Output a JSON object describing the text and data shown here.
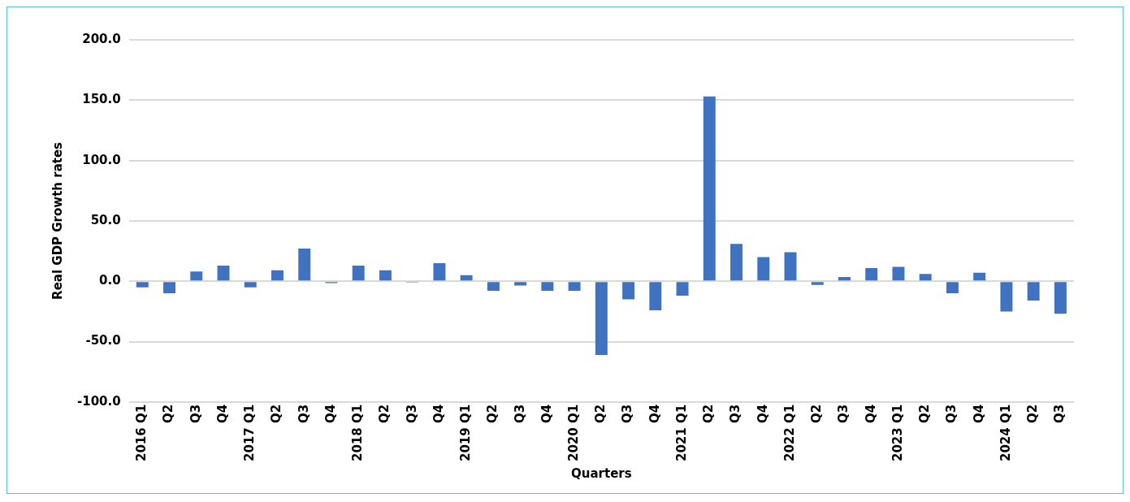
{
  "chart_data": {
    "type": "bar",
    "xlabel": "Quarters",
    "ylabel": "Real GDP Growth rates",
    "categories": [
      "2016 Q1",
      "Q2",
      "Q3",
      "Q4",
      "2017 Q1",
      "Q2",
      "Q3",
      "Q4",
      "2018 Q1",
      "Q2",
      "Q3",
      "Q4",
      "2019 Q1",
      "Q2",
      "Q3",
      "Q4",
      "2020 Q1",
      "Q2",
      "Q3",
      "Q4",
      "2021 Q1",
      "Q2",
      "Q3",
      "Q4",
      "2022 Q1",
      "Q2",
      "Q3",
      "Q4",
      "2023 Q1",
      "Q2",
      "Q3",
      "Q4",
      "2024 Q1",
      "Q2",
      "Q3"
    ],
    "values": [
      -5,
      -10,
      8,
      13,
      -5,
      9,
      27,
      -1.5,
      13,
      9,
      -1,
      15,
      5,
      -8,
      -3.5,
      -8,
      -8,
      -61,
      -15,
      -24,
      -12,
      153,
      31,
      20,
      24,
      -3,
      3.5,
      11,
      12,
      6,
      -10,
      7,
      -25,
      -16,
      -27
    ],
    "color": "#3f72c0",
    "ylim": [
      -100,
      200
    ],
    "yticks": [
      {
        "value": -100,
        "label": "-100.0"
      },
      {
        "value": -50,
        "label": "-50.0"
      },
      {
        "value": 0,
        "label": "0.0"
      },
      {
        "value": 50,
        "label": "50.0"
      },
      {
        "value": 100,
        "label": "100.0"
      },
      {
        "value": 150,
        "label": "150.0"
      },
      {
        "value": 200,
        "label": "200.0"
      }
    ],
    "grid": "y",
    "legend": false
  }
}
